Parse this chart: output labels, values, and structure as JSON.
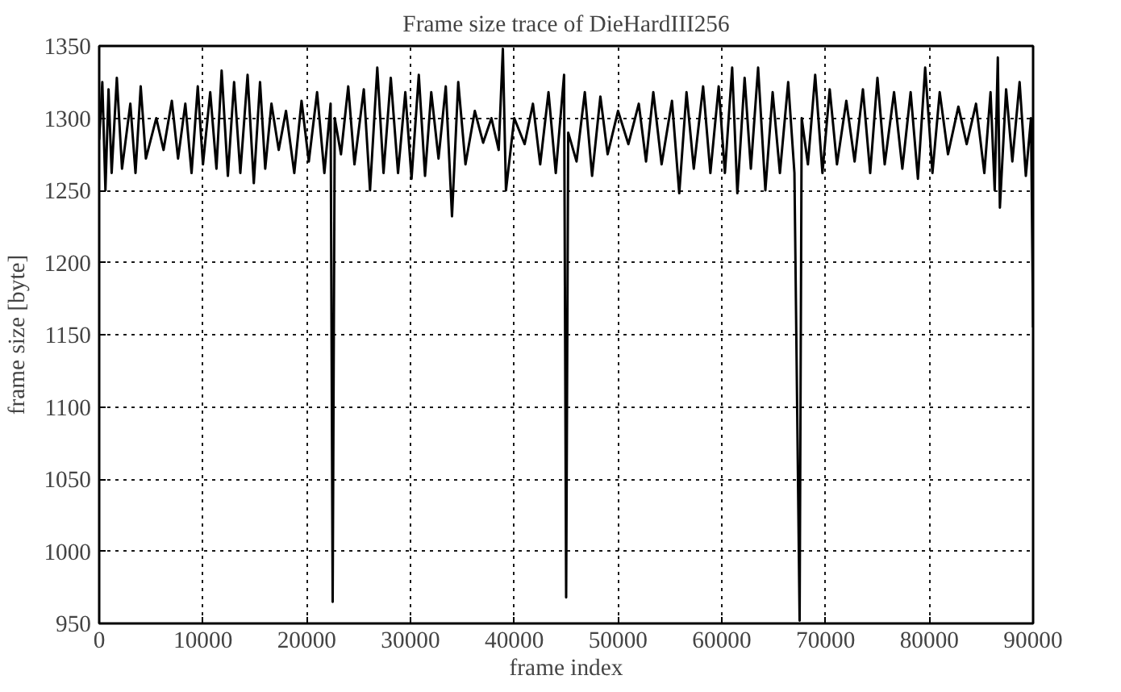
{
  "chart_data": {
    "type": "line",
    "title": "Frame size trace of DieHardIII256",
    "xlabel": "frame index",
    "ylabel": "frame size [byte]",
    "xlim": [
      0,
      90000
    ],
    "ylim": [
      950,
      1350
    ],
    "xticks": [
      0,
      10000,
      20000,
      30000,
      40000,
      50000,
      60000,
      70000,
      80000,
      90000
    ],
    "yticks": [
      950,
      1000,
      1050,
      1100,
      1150,
      1200,
      1250,
      1300,
      1350
    ],
    "grid": true,
    "marker": "none",
    "line_style": "solid",
    "series": [
      {
        "color": "#000000",
        "x": [
          0,
          300,
          600,
          900,
          1200,
          1700,
          2200,
          3000,
          3500,
          4000,
          4500,
          5500,
          6200,
          7000,
          7600,
          8300,
          8900,
          9500,
          10000,
          10700,
          11300,
          11800,
          12400,
          13000,
          13600,
          14300,
          14900,
          15500,
          16000,
          16600,
          17300,
          18000,
          18800,
          19500,
          20200,
          21000,
          21700,
          22300,
          22500,
          22700,
          23300,
          24000,
          24600,
          25500,
          26100,
          26800,
          27400,
          28100,
          28800,
          29500,
          30100,
          30800,
          31400,
          32000,
          32700,
          33400,
          34000,
          34600,
          35300,
          36200,
          37000,
          37800,
          38500,
          38900,
          39200,
          40000,
          41000,
          41800,
          42500,
          43300,
          44000,
          44800,
          45000,
          45200,
          46000,
          46800,
          47500,
          48300,
          49000,
          50000,
          51000,
          52000,
          52700,
          53400,
          54200,
          55200,
          55900,
          56600,
          57300,
          58200,
          58900,
          59700,
          60300,
          61000,
          61500,
          62200,
          62800,
          63500,
          64200,
          64900,
          65600,
          66400,
          67000,
          67500,
          67700,
          68300,
          69000,
          69700,
          70400,
          71100,
          72000,
          72800,
          73600,
          74300,
          75000,
          75700,
          76600,
          77400,
          78200,
          78900,
          79600,
          80300,
          81000,
          81800,
          82800,
          83600,
          84500,
          85300,
          85900,
          86300,
          86600,
          86800,
          87400,
          88000,
          88700,
          89300,
          89800,
          90000
        ],
        "values": [
          1285,
          1325,
          1250,
          1320,
          1262,
          1328,
          1265,
          1310,
          1262,
          1322,
          1272,
          1300,
          1278,
          1312,
          1272,
          1310,
          1262,
          1322,
          1268,
          1318,
          1265,
          1333,
          1260,
          1325,
          1262,
          1330,
          1255,
          1325,
          1265,
          1310,
          1278,
          1305,
          1262,
          1312,
          1270,
          1318,
          1262,
          1310,
          965,
          1300,
          1275,
          1322,
          1268,
          1320,
          1250,
          1335,
          1262,
          1328,
          1262,
          1318,
          1258,
          1330,
          1260,
          1318,
          1272,
          1322,
          1232,
          1325,
          1268,
          1305,
          1283,
          1300,
          1278,
          1348,
          1250,
          1300,
          1282,
          1310,
          1268,
          1318,
          1262,
          1330,
          968,
          1290,
          1270,
          1318,
          1260,
          1315,
          1275,
          1305,
          1282,
          1310,
          1270,
          1318,
          1268,
          1312,
          1248,
          1318,
          1265,
          1322,
          1262,
          1322,
          1262,
          1335,
          1248,
          1328,
          1265,
          1335,
          1250,
          1318,
          1262,
          1325,
          1262,
          952,
          1300,
          1268,
          1330,
          1262,
          1320,
          1268,
          1312,
          1270,
          1320,
          1262,
          1328,
          1268,
          1318,
          1265,
          1318,
          1258,
          1335,
          1262,
          1318,
          1275,
          1308,
          1282,
          1310,
          1262,
          1318,
          1250,
          1342,
          1238,
          1320,
          1270,
          1325,
          1260,
          1300,
          1155
        ]
      }
    ]
  }
}
